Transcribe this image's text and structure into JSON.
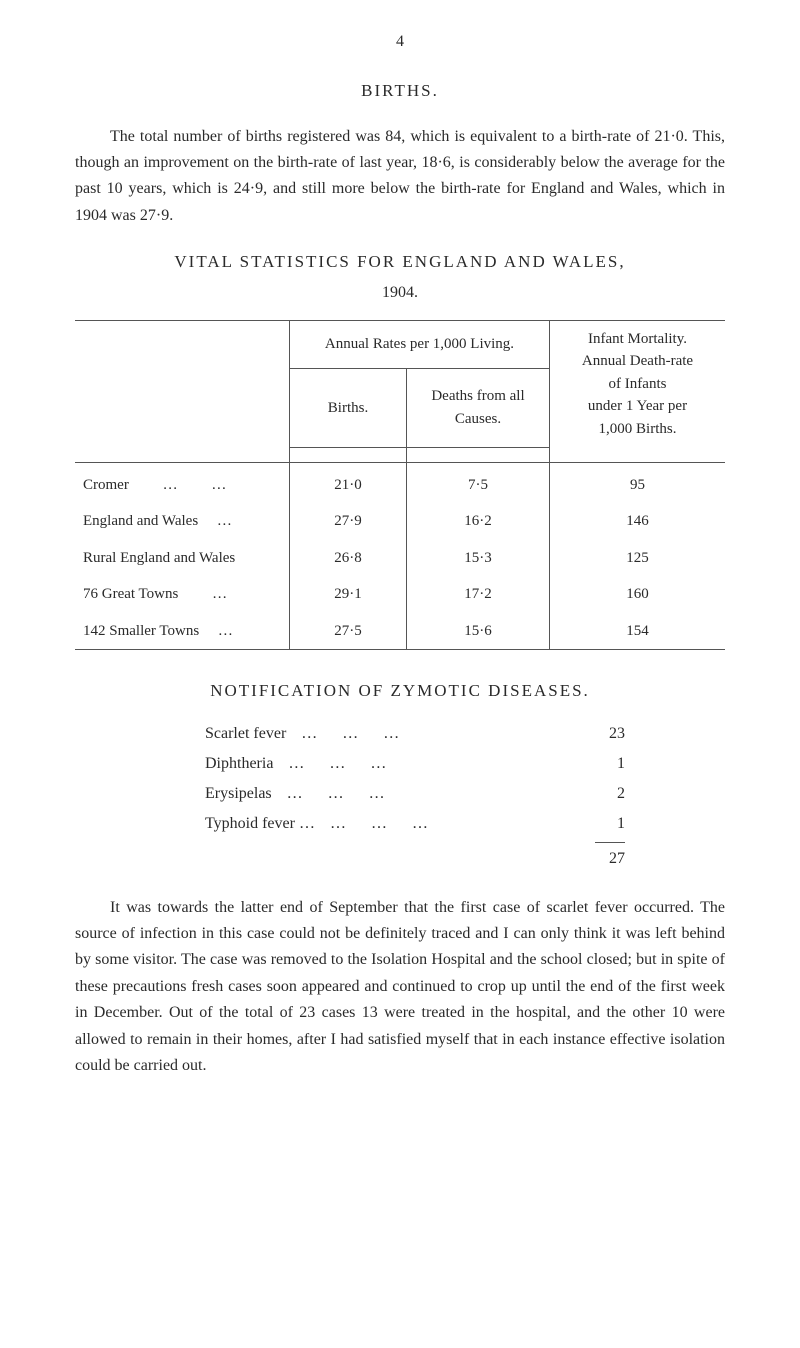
{
  "page_number": "4",
  "births_section": {
    "heading": "BIRTHS.",
    "paragraph": "The total number of births registered was 84, which is equivalent to a birth-rate of 21·0. This, though an improvement on the birth-rate of last year, 18·6, is considerably below the average for the past 10 years, which is 24·9, and still more below the birth-rate for England and Wales, which in 1904 was 27·9."
  },
  "vital_stats": {
    "heading": "VITAL STATISTICS FOR ENGLAND AND WALES,",
    "year": "1904.",
    "header_col1": "",
    "header_annual": "Annual Rates per 1,000 Living.",
    "header_infant_line1": "Infant Mortality.",
    "header_infant_line2": "Annual Death-rate",
    "header_infant_line3": "of Infants",
    "header_infant_line4": "under 1 Year per",
    "header_infant_line5": "1,000 Births.",
    "header_births": "Births.",
    "header_deaths_line1": "Deaths from all",
    "header_deaths_line2": "Causes.",
    "rows": [
      {
        "label": "Cromer",
        "dots": "…",
        "births": "21·0",
        "deaths": "7·5",
        "infant": "95"
      },
      {
        "label": "England and Wales",
        "dots": "…",
        "births": "27·9",
        "deaths": "16·2",
        "infant": "146"
      },
      {
        "label": "Rural England and Wales",
        "dots": "",
        "births": "26·8",
        "deaths": "15·3",
        "infant": "125"
      },
      {
        "label": "76 Great Towns",
        "dots": "…",
        "births": "29·1",
        "deaths": "17·2",
        "infant": "160"
      },
      {
        "label": "142 Smaller Towns",
        "dots": "…",
        "births": "27·5",
        "deaths": "15·6",
        "infant": "154"
      }
    ]
  },
  "notification": {
    "heading": "NOTIFICATION OF ZYMOTIC DISEASES.",
    "items": [
      {
        "label": "Scarlet fever",
        "value": "23"
      },
      {
        "label": "Diphtheria",
        "value": "1"
      },
      {
        "label": "Erysipelas",
        "value": "2"
      },
      {
        "label": "Typhoid fever …",
        "value": "1"
      }
    ],
    "total": "27"
  },
  "closing_paragraph": "It was towards the latter end of September that the first case of scarlet fever occurred. The source of infection in this case could not be definitely traced and I can only think it was left behind by some visitor. The case was removed to the Isolation Hospital and the school closed; but in spite of these precautions fresh cases soon appeared and continued to crop up until the end of the first week in December. Out of the total of 23 cases 13 were treated in the hospital, and the other 10 were allowed to remain in their homes, after I had satisfied myself that in each instance effective isolation could be carried out."
}
